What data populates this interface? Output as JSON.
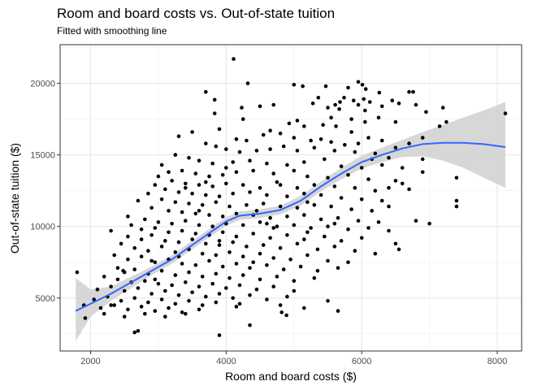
{
  "chart_data": {
    "type": "scatter",
    "title": "Room and board costs vs. Out-of-state tuition",
    "subtitle": "Fitted with smoothing line",
    "xlabel": "Room and board costs ($)",
    "ylabel": "Out-of-state tuition ($)",
    "xlim": [
      1550,
      8360
    ],
    "ylim": [
      1300,
      22700
    ],
    "x_ticks": [
      2000,
      4000,
      6000,
      8000
    ],
    "y_ticks": [
      5000,
      10000,
      15000,
      20000
    ],
    "x_tick_labels": [
      "2000",
      "4000",
      "6000",
      "8000"
    ],
    "y_tick_labels": [
      "5000",
      "10000",
      "15000",
      "20000"
    ],
    "grid": true,
    "point_color": "#000000",
    "smooth_color": "#3366FF",
    "band_color": "#D3D3D3",
    "smooth": {
      "x": [
        1780,
        2000,
        2300,
        2600,
        2900,
        3200,
        3500,
        3800,
        4000,
        4200,
        4500,
        4800,
        5100,
        5400,
        5700,
        6000,
        6300,
        6600,
        6900,
        7200,
        7500,
        7800,
        8120
      ],
      "y": [
        4100,
        4600,
        5300,
        6100,
        6900,
        7700,
        8700,
        9700,
        10350,
        10750,
        10900,
        11150,
        11800,
        12800,
        13700,
        14500,
        15000,
        15450,
        15750,
        15850,
        15850,
        15750,
        15550
      ],
      "lower": [
        2000,
        3700,
        4800,
        5700,
        6600,
        7400,
        8400,
        9400,
        10050,
        10450,
        10600,
        10850,
        11450,
        12450,
        13300,
        14050,
        14500,
        14850,
        14900,
        14600,
        14100,
        13400,
        12700
      ],
      "upper": [
        6400,
        5600,
        5800,
        6500,
        7200,
        8000,
        9000,
        10000,
        10650,
        11050,
        11200,
        11450,
        12150,
        13150,
        14100,
        14950,
        15500,
        16050,
        16600,
        17100,
        17600,
        18100,
        18700
      ]
    },
    "points": [
      [
        4110,
        21700
      ],
      [
        5950,
        20100
      ],
      [
        6010,
        19900
      ],
      [
        5470,
        19800
      ],
      [
        5800,
        19700
      ],
      [
        6060,
        19600
      ],
      [
        6700,
        19400
      ],
      [
        6760,
        19400
      ],
      [
        5130,
        19800
      ],
      [
        4320,
        20000
      ],
      [
        5000,
        19900
      ],
      [
        3700,
        19400
      ],
      [
        3830,
        18850
      ],
      [
        6260,
        19350
      ],
      [
        5360,
        19000
      ],
      [
        5740,
        19000
      ],
      [
        6030,
        18900
      ],
      [
        6120,
        18700
      ],
      [
        5950,
        18500
      ],
      [
        5610,
        18500
      ],
      [
        5500,
        18300
      ],
      [
        5670,
        18200
      ],
      [
        6300,
        18400
      ],
      [
        6550,
        18600
      ],
      [
        6800,
        18500
      ],
      [
        6950,
        18000
      ],
      [
        7200,
        18300
      ],
      [
        7150,
        17000
      ],
      [
        7250,
        17300
      ],
      [
        8120,
        17900
      ],
      [
        6050,
        18100
      ],
      [
        5880,
        18800
      ],
      [
        6450,
        18800
      ],
      [
        5680,
        18700
      ],
      [
        5280,
        18600
      ],
      [
        4700,
        18500
      ],
      [
        4500,
        18400
      ],
      [
        4230,
        18300
      ],
      [
        3830,
        17900
      ],
      [
        5550,
        17600
      ],
      [
        5850,
        17500
      ],
      [
        6050,
        17300
      ],
      [
        6250,
        17600
      ],
      [
        6500,
        17300
      ],
      [
        4250,
        17500
      ],
      [
        4930,
        17200
      ],
      [
        5150,
        17000
      ],
      [
        5430,
        17100
      ],
      [
        5620,
        17000
      ],
      [
        3900,
        16800
      ],
      [
        4650,
        16700
      ],
      [
        4800,
        16500
      ],
      [
        5000,
        16200
      ],
      [
        5250,
        16000
      ],
      [
        5400,
        16100
      ],
      [
        5550,
        15900
      ],
      [
        5750,
        15700
      ],
      [
        5950,
        15800
      ],
      [
        6100,
        16200
      ],
      [
        6300,
        16000
      ],
      [
        6500,
        15500
      ],
      [
        6700,
        15800
      ],
      [
        6900,
        16200
      ],
      [
        4300,
        16000
      ],
      [
        3300,
        16300
      ],
      [
        3700,
        15800
      ],
      [
        3850,
        15600
      ],
      [
        4000,
        15400
      ],
      [
        4200,
        15200
      ],
      [
        4450,
        15300
      ],
      [
        4650,
        15400
      ],
      [
        4850,
        15600
      ],
      [
        5050,
        15300
      ],
      [
        5300,
        15500
      ],
      [
        5600,
        15300
      ],
      [
        5900,
        15200
      ],
      [
        6200,
        15100
      ],
      [
        6400,
        14800
      ],
      [
        3250,
        15000
      ],
      [
        3450,
        14800
      ],
      [
        3600,
        14600
      ],
      [
        3800,
        14400
      ],
      [
        4100,
        14500
      ],
      [
        4350,
        14600
      ],
      [
        4600,
        14400
      ],
      [
        4900,
        14300
      ],
      [
        5150,
        14500
      ],
      [
        5450,
        14700
      ],
      [
        5700,
        14200
      ],
      [
        6000,
        14100
      ],
      [
        6300,
        14300
      ],
      [
        6600,
        14100
      ],
      [
        6900,
        13800
      ],
      [
        3050,
        14300
      ],
      [
        3150,
        13800
      ],
      [
        3350,
        13900
      ],
      [
        3550,
        13700
      ],
      [
        3750,
        13500
      ],
      [
        3950,
        13600
      ],
      [
        4150,
        13800
      ],
      [
        4400,
        13900
      ],
      [
        4700,
        13700
      ],
      [
        5000,
        13900
      ],
      [
        5200,
        13500
      ],
      [
        5500,
        13400
      ],
      [
        5800,
        13600
      ],
      [
        6100,
        13300
      ],
      [
        6500,
        13200
      ],
      [
        7400,
        13400
      ],
      [
        3000,
        13500
      ],
      [
        3200,
        13200
      ],
      [
        3400,
        13000
      ],
      [
        3600,
        12900
      ],
      [
        3800,
        12800
      ],
      [
        4000,
        13000
      ],
      [
        4250,
        12900
      ],
      [
        4500,
        12700
      ],
      [
        4800,
        12900
      ],
      [
        5050,
        12700
      ],
      [
        5300,
        12900
      ],
      [
        5600,
        12800
      ],
      [
        5900,
        12700
      ],
      [
        6200,
        12500
      ],
      [
        6700,
        12600
      ],
      [
        2950,
        12900
      ],
      [
        3100,
        12600
      ],
      [
        3300,
        12400
      ],
      [
        3500,
        12300
      ],
      [
        3700,
        12200
      ],
      [
        3900,
        12100
      ],
      [
        4100,
        12300
      ],
      [
        4350,
        12400
      ],
      [
        4600,
        12200
      ],
      [
        4900,
        12100
      ],
      [
        5150,
        12300
      ],
      [
        5400,
        12200
      ],
      [
        5700,
        12000
      ],
      [
        6000,
        11900
      ],
      [
        6300,
        11800
      ],
      [
        7400,
        11800
      ],
      [
        2700,
        11800
      ],
      [
        2850,
        12300
      ],
      [
        3050,
        11900
      ],
      [
        3250,
        11700
      ],
      [
        3450,
        11600
      ],
      [
        3650,
        11500
      ],
      [
        3850,
        11700
      ],
      [
        4050,
        11400
      ],
      [
        4300,
        11500
      ],
      [
        4550,
        11600
      ],
      [
        4800,
        11400
      ],
      [
        5050,
        11300
      ],
      [
        5300,
        11500
      ],
      [
        5550,
        11400
      ],
      [
        5850,
        11200
      ],
      [
        6150,
        11100
      ],
      [
        6400,
        11400
      ],
      [
        7400,
        11400
      ],
      [
        2900,
        11300
      ],
      [
        3150,
        11100
      ],
      [
        3350,
        11000
      ],
      [
        3550,
        10900
      ],
      [
        3750,
        10800
      ],
      [
        3950,
        10700
      ],
      [
        4150,
        10900
      ],
      [
        4400,
        10800
      ],
      [
        4650,
        10600
      ],
      [
        4900,
        10700
      ],
      [
        5150,
        10800
      ],
      [
        5400,
        10500
      ],
      [
        5650,
        10600
      ],
      [
        5950,
        10400
      ],
      [
        6250,
        10300
      ],
      [
        6800,
        10400
      ],
      [
        2550,
        10700
      ],
      [
        2800,
        10500
      ],
      [
        3000,
        10300
      ],
      [
        3200,
        10200
      ],
      [
        3400,
        10400
      ],
      [
        3600,
        10100
      ],
      [
        3800,
        10000
      ],
      [
        4000,
        10200
      ],
      [
        4250,
        10100
      ],
      [
        4500,
        10300
      ],
      [
        4750,
        10000
      ],
      [
        5000,
        10100
      ],
      [
        5250,
        9900
      ],
      [
        5500,
        10000
      ],
      [
        5800,
        9800
      ],
      [
        6100,
        9900
      ],
      [
        6400,
        9700
      ],
      [
        7000,
        10200
      ],
      [
        2600,
        10100
      ],
      [
        2750,
        9800
      ],
      [
        2950,
        9900
      ],
      [
        3150,
        9600
      ],
      [
        3350,
        9700
      ],
      [
        3550,
        9500
      ],
      [
        3750,
        9400
      ],
      [
        3950,
        9600
      ],
      [
        4150,
        9300
      ],
      [
        4400,
        9500
      ],
      [
        4650,
        9200
      ],
      [
        4900,
        9400
      ],
      [
        5150,
        9100
      ],
      [
        5450,
        9300
      ],
      [
        5700,
        9000
      ],
      [
        6000,
        9200
      ],
      [
        6500,
        8800
      ],
      [
        2300,
        9700
      ],
      [
        2550,
        9300
      ],
      [
        2750,
        9100
      ],
      [
        2900,
        9400
      ],
      [
        3100,
        9000
      ],
      [
        3300,
        8900
      ],
      [
        3500,
        9100
      ],
      [
        3700,
        8800
      ],
      [
        3900,
        8700
      ],
      [
        4100,
        8900
      ],
      [
        4300,
        8600
      ],
      [
        4550,
        8700
      ],
      [
        4800,
        8500
      ],
      [
        5050,
        8800
      ],
      [
        5350,
        8400
      ],
      [
        5600,
        8600
      ],
      [
        5900,
        8300
      ],
      [
        6200,
        8100
      ],
      [
        6550,
        8400
      ],
      [
        2450,
        8800
      ],
      [
        2650,
        8500
      ],
      [
        2850,
        8300
      ],
      [
        3050,
        8600
      ],
      [
        3250,
        8200
      ],
      [
        3450,
        8400
      ],
      [
        3650,
        8100
      ],
      [
        3850,
        8000
      ],
      [
        4050,
        8200
      ],
      [
        4250,
        7900
      ],
      [
        4500,
        8100
      ],
      [
        4700,
        7800
      ],
      [
        4950,
        7700
      ],
      [
        5200,
        8000
      ],
      [
        5500,
        7600
      ],
      [
        5800,
        7500
      ],
      [
        2350,
        8000
      ],
      [
        2550,
        7700
      ],
      [
        2750,
        7900
      ],
      [
        2950,
        7500
      ],
      [
        3150,
        7700
      ],
      [
        3350,
        7400
      ],
      [
        3550,
        7300
      ],
      [
        3750,
        7600
      ],
      [
        3950,
        7200
      ],
      [
        4150,
        7400
      ],
      [
        4350,
        7100
      ],
      [
        4600,
        7300
      ],
      [
        4850,
        7000
      ],
      [
        5100,
        7200
      ],
      [
        5350,
        6900
      ],
      [
        5650,
        7100
      ],
      [
        2400,
        7100
      ],
      [
        2500,
        6800
      ],
      [
        2650,
        7000
      ],
      [
        2850,
        6700
      ],
      [
        3050,
        6900
      ],
      [
        3250,
        6600
      ],
      [
        3450,
        6800
      ],
      [
        3650,
        6500
      ],
      [
        3850,
        6700
      ],
      [
        4050,
        6400
      ],
      [
        4250,
        6600
      ],
      [
        4500,
        6300
      ],
      [
        4750,
        6500
      ],
      [
        5000,
        6200
      ],
      [
        5300,
        6400
      ],
      [
        1800,
        6800
      ],
      [
        2200,
        6500
      ],
      [
        2400,
        6300
      ],
      [
        2600,
        6100
      ],
      [
        2800,
        6200
      ],
      [
        3000,
        6000
      ],
      [
        3200,
        5900
      ],
      [
        3400,
        6100
      ],
      [
        3600,
        5800
      ],
      [
        3800,
        6000
      ],
      [
        4000,
        5700
      ],
      [
        4200,
        5900
      ],
      [
        4450,
        5600
      ],
      [
        4700,
        5800
      ],
      [
        5000,
        5500
      ],
      [
        2100,
        5600
      ],
      [
        2300,
        5800
      ],
      [
        2500,
        5500
      ],
      [
        2700,
        5700
      ],
      [
        2900,
        5300
      ],
      [
        3100,
        5500
      ],
      [
        3300,
        5200
      ],
      [
        3500,
        5400
      ],
      [
        3700,
        5100
      ],
      [
        3900,
        5300
      ],
      [
        4100,
        5000
      ],
      [
        4350,
        5200
      ],
      [
        4600,
        4900
      ],
      [
        4900,
        5100
      ],
      [
        2050,
        4900
      ],
      [
        2250,
        5100
      ],
      [
        2450,
        4800
      ],
      [
        2650,
        5000
      ],
      [
        2850,
        4700
      ],
      [
        3050,
        4900
      ],
      [
        3250,
        4600
      ],
      [
        3450,
        4800
      ],
      [
        3650,
        4500
      ],
      [
        3850,
        4700
      ],
      [
        4150,
        4400
      ],
      [
        5500,
        4800
      ],
      [
        1900,
        4500
      ],
      [
        2150,
        4300
      ],
      [
        2350,
        4500
      ],
      [
        2550,
        4200
      ],
      [
        2750,
        4400
      ],
      [
        2950,
        4100
      ],
      [
        3150,
        4300
      ],
      [
        3350,
        4000
      ],
      [
        3600,
        4200
      ],
      [
        4200,
        4600
      ],
      [
        4800,
        4500
      ],
      [
        5150,
        4300
      ],
      [
        5650,
        4100
      ],
      [
        1920,
        3600
      ],
      [
        2200,
        3900
      ],
      [
        2500,
        3700
      ],
      [
        2800,
        3900
      ],
      [
        3100,
        3700
      ],
      [
        3400,
        3900
      ],
      [
        4820,
        4000
      ],
      [
        2700,
        2700
      ],
      [
        2650,
        2600
      ],
      [
        3900,
        2400
      ],
      [
        4350,
        3100
      ],
      [
        4890,
        3800
      ],
      [
        2300,
        4500
      ],
      [
        2480,
        6900
      ],
      [
        2900,
        7600
      ],
      [
        3600,
        11100
      ],
      [
        4700,
        9900
      ],
      [
        5200,
        11700
      ],
      [
        5600,
        10200
      ],
      [
        6400,
        12700
      ],
      [
        6600,
        13000
      ],
      [
        3500,
        16600
      ],
      [
        4150,
        16100
      ],
      [
        4550,
        16400
      ],
      [
        5050,
        17400
      ],
      [
        5850,
        16600
      ],
      [
        6150,
        14700
      ],
      [
        4750,
        13100
      ],
      [
        4450,
        11100
      ],
      [
        3900,
        9000
      ],
      [
        3300,
        7900
      ],
      [
        2950,
        6300
      ],
      [
        4000,
        14100
      ],
      [
        4400,
        7500
      ],
      [
        5200,
        9600
      ],
      [
        6900,
        14700
      ],
      [
        3700,
        13100
      ],
      [
        4600,
        10200
      ],
      [
        3400,
        12700
      ]
    ]
  }
}
